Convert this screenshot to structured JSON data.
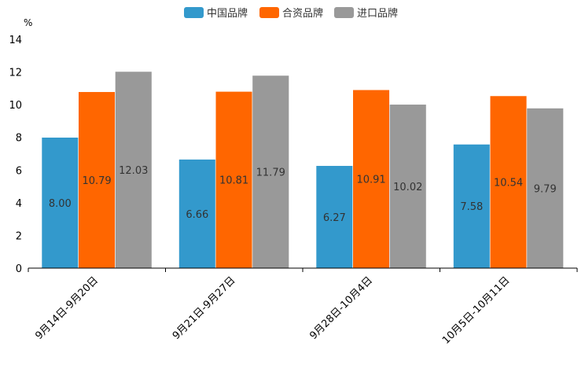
{
  "chart_data": {
    "type": "bar",
    "ylabel": "%",
    "ylim": [
      0,
      14
    ],
    "yticks": [
      0,
      2,
      4,
      6,
      8,
      10,
      12,
      14
    ],
    "categories": [
      "9月14日-9月20日",
      "9月21日-9月27日",
      "9月28日-10月4日",
      "10月5日-10月11日"
    ],
    "series": [
      {
        "name": "中国品牌",
        "color": "#3399CC",
        "values": [
          8.0,
          6.66,
          6.27,
          7.58
        ],
        "labels": [
          "8.00",
          "6.66",
          "6.27",
          "7.58"
        ]
      },
      {
        "name": "合资品牌",
        "color": "#FF6600",
        "values": [
          10.79,
          10.81,
          10.91,
          10.54
        ],
        "labels": [
          "10.79",
          "10.81",
          "10.91",
          "10.54"
        ]
      },
      {
        "name": "进口品牌",
        "color": "#999999",
        "values": [
          12.03,
          11.79,
          10.02,
          9.79
        ],
        "labels": [
          "12.03",
          "11.79",
          "10.02",
          "9.79"
        ]
      }
    ],
    "legend_position": "top-center",
    "grid": false
  }
}
